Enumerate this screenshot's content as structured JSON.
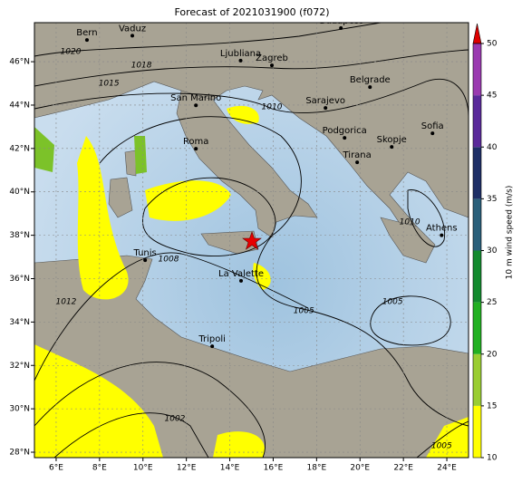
{
  "title": "Forecast of 2021031900 (f072)",
  "map": {
    "lonlim": [
      5,
      25
    ],
    "latlim": [
      27.75,
      47.8
    ],
    "lonticks": [
      {
        "value": 6,
        "label": "6°E"
      },
      {
        "value": 8,
        "label": "8°E"
      },
      {
        "value": 10,
        "label": "10°E"
      },
      {
        "value": 12,
        "label": "12°E"
      },
      {
        "value": 14,
        "label": "14°E"
      },
      {
        "value": 16,
        "label": "16°E"
      },
      {
        "value": 18,
        "label": "18°E"
      },
      {
        "value": 20,
        "label": "20°E"
      },
      {
        "value": 22,
        "label": "22°E"
      },
      {
        "value": 24,
        "label": "24°E"
      }
    ],
    "latticks": [
      {
        "value": 28,
        "label": "28°N"
      },
      {
        "value": 30,
        "label": "30°N"
      },
      {
        "value": 32,
        "label": "32°N"
      },
      {
        "value": 34,
        "label": "34°N"
      },
      {
        "value": 36,
        "label": "36°N"
      },
      {
        "value": 38,
        "label": "38°N"
      },
      {
        "value": 40,
        "label": "40°N"
      },
      {
        "value": 42,
        "label": "42°N"
      },
      {
        "value": 44,
        "label": "44°N"
      },
      {
        "value": 46,
        "label": "46°N"
      }
    ],
    "cities": [
      {
        "name": "Bern",
        "lon": 7.42,
        "lat": 47.0
      },
      {
        "name": "Vaduz",
        "lon": 9.51,
        "lat": 47.2
      },
      {
        "name": "Budapest",
        "lon": 19.12,
        "lat": 47.55
      },
      {
        "name": "Ljubliana",
        "lon": 14.5,
        "lat": 46.05
      },
      {
        "name": "Zagreb",
        "lon": 15.94,
        "lat": 45.83
      },
      {
        "name": "Belgrade",
        "lon": 20.46,
        "lat": 44.83
      },
      {
        "name": "San Marino",
        "lon": 12.44,
        "lat": 43.99
      },
      {
        "name": "Sarajevo",
        "lon": 18.41,
        "lat": 43.87
      },
      {
        "name": "Podgorica",
        "lon": 19.29,
        "lat": 42.49
      },
      {
        "name": "Sofia",
        "lon": 23.34,
        "lat": 42.7
      },
      {
        "name": "Skopje",
        "lon": 21.46,
        "lat": 42.07
      },
      {
        "name": "Roma",
        "lon": 12.44,
        "lat": 41.99
      },
      {
        "name": "Tirana",
        "lon": 19.87,
        "lat": 41.36
      },
      {
        "name": "Athens",
        "lon": 23.76,
        "lat": 38.0
      },
      {
        "name": "Tunis",
        "lon": 10.1,
        "lat": 36.85
      },
      {
        "name": "La Valette",
        "lon": 14.52,
        "lat": 35.9
      },
      {
        "name": "Tripoli",
        "lon": 13.19,
        "lat": 32.88
      }
    ],
    "isobar_labels": [
      {
        "label": "1020",
        "lon": 6.67,
        "lat": 46.46
      },
      {
        "label": "1018",
        "lon": 9.93,
        "lat": 45.83
      },
      {
        "label": "1015",
        "lon": 8.43,
        "lat": 45.0
      },
      {
        "label": "1010",
        "lon": 15.94,
        "lat": 43.91
      },
      {
        "label": "1008",
        "lon": 11.18,
        "lat": 36.89
      },
      {
        "label": "1012",
        "lon": 6.46,
        "lat": 34.93
      },
      {
        "label": "1005",
        "lon": 17.41,
        "lat": 34.51
      },
      {
        "label": "1005",
        "lon": 21.5,
        "lat": 34.93
      },
      {
        "label": "1002",
        "lon": 11.47,
        "lat": 29.54
      },
      {
        "label": "1005",
        "lon": 23.76,
        "lat": 28.29
      },
      {
        "label": "1010",
        "lon": 22.29,
        "lat": 38.6
      }
    ]
  },
  "colorbar": {
    "label": "10 m wind speed (m/s)",
    "lim": [
      10,
      50
    ],
    "ticks": [
      10,
      15,
      20,
      25,
      30,
      35,
      40,
      45,
      50
    ],
    "colors": [
      "#ffff00",
      "#9acd32",
      "#22b022",
      "#138a2e",
      "#2a5f7a",
      "#1e2f66",
      "#5a2a9a",
      "#9a3ab0"
    ],
    "extend_color": "#dd0000"
  }
}
